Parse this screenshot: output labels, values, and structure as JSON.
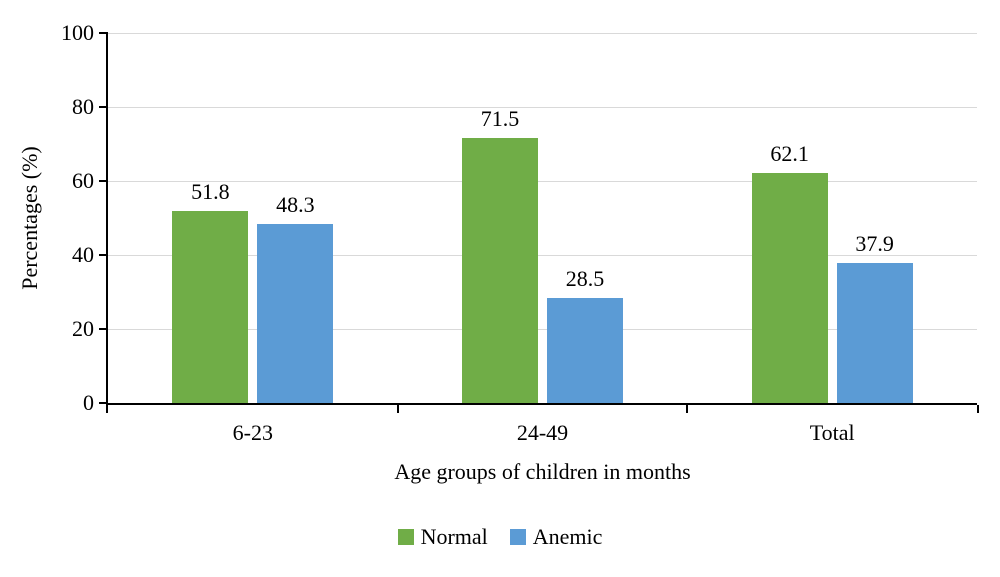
{
  "chart_data": {
    "type": "bar",
    "title": "",
    "xlabel": "Age groups of children in months",
    "ylabel": "Percentages (%)",
    "categories": [
      "6-23",
      "24-49",
      "Total"
    ],
    "series": [
      {
        "name": "Normal",
        "color": "#70AD47",
        "values": [
          51.8,
          71.5,
          62.1
        ]
      },
      {
        "name": "Anemic",
        "color": "#5B9BD5",
        "values": [
          48.3,
          28.5,
          37.9
        ]
      }
    ],
    "ylim": [
      0,
      100
    ],
    "ytick_step": 20,
    "grid": true,
    "legend_position": "bottom",
    "colors": {
      "grid": "#d9d9d9",
      "axis": "#000000",
      "text": "#000000"
    }
  }
}
